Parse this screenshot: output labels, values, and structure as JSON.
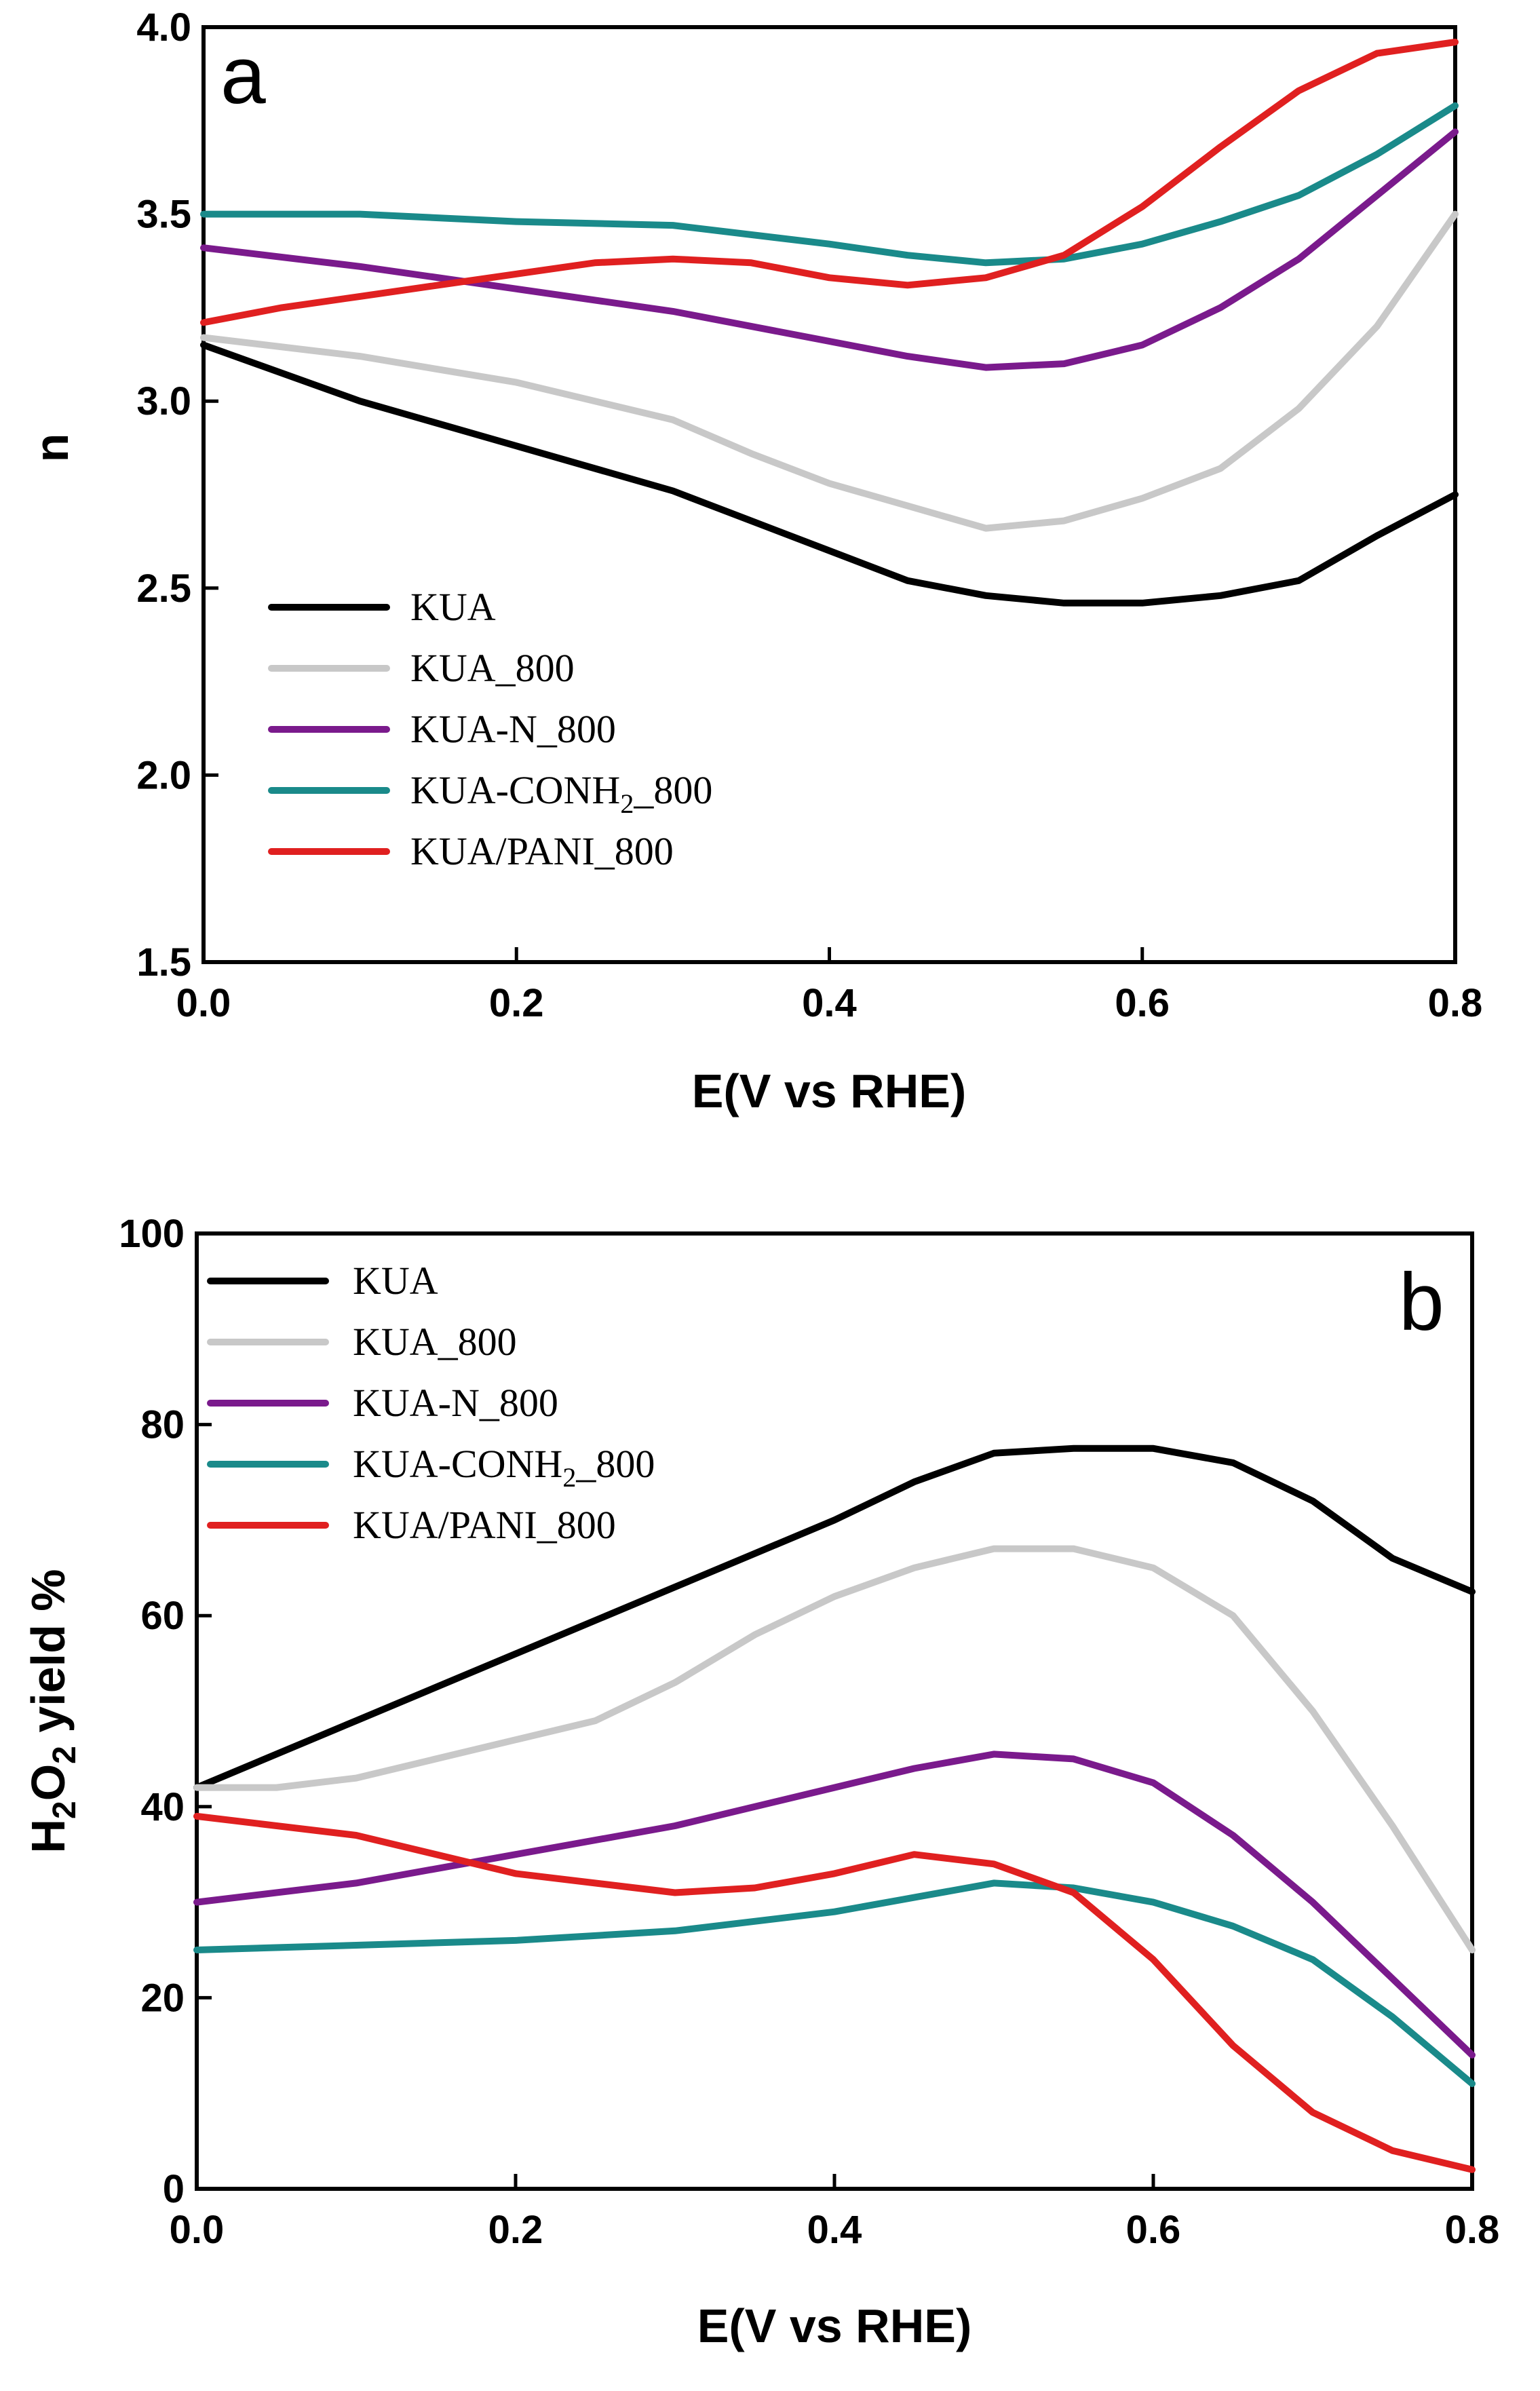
{
  "chart_data": [
    {
      "type": "line",
      "panel_label": "a",
      "title": "",
      "xlabel": "E(V vs RHE)",
      "ylabel": "n",
      "xlim": [
        0.0,
        0.8
      ],
      "ylim": [
        1.5,
        4.0
      ],
      "xticks": [
        "0.0",
        "0.2",
        "0.4",
        "0.6",
        "0.8"
      ],
      "yticks": [
        "1.5",
        "2.0",
        "2.5",
        "3.0",
        "3.5",
        "4.0"
      ],
      "legend_position": "lower-left",
      "series": [
        {
          "name": "KUA",
          "color": "#000000",
          "x": [
            0.0,
            0.1,
            0.2,
            0.3,
            0.4,
            0.45,
            0.5,
            0.55,
            0.6,
            0.65,
            0.7,
            0.75,
            0.8
          ],
          "y": [
            3.15,
            3.0,
            2.88,
            2.76,
            2.6,
            2.52,
            2.48,
            2.46,
            2.46,
            2.48,
            2.52,
            2.64,
            2.75
          ]
        },
        {
          "name": "KUA_800",
          "color": "#c8c8c8",
          "x": [
            0.0,
            0.1,
            0.2,
            0.3,
            0.35,
            0.4,
            0.45,
            0.5,
            0.55,
            0.6,
            0.65,
            0.7,
            0.75,
            0.8
          ],
          "y": [
            3.17,
            3.12,
            3.05,
            2.95,
            2.86,
            2.78,
            2.72,
            2.66,
            2.68,
            2.74,
            2.82,
            2.98,
            3.2,
            3.5
          ]
        },
        {
          "name": "KUA-N_800",
          "color": "#7a1a8c",
          "x": [
            0.0,
            0.1,
            0.2,
            0.3,
            0.4,
            0.45,
            0.5,
            0.55,
            0.6,
            0.65,
            0.7,
            0.75,
            0.8
          ],
          "y": [
            3.41,
            3.36,
            3.3,
            3.24,
            3.16,
            3.12,
            3.09,
            3.1,
            3.15,
            3.25,
            3.38,
            3.55,
            3.72
          ]
        },
        {
          "name": "KUA-CONH2_800",
          "color": "#1a8a8a",
          "x": [
            0.0,
            0.1,
            0.2,
            0.3,
            0.4,
            0.45,
            0.5,
            0.55,
            0.6,
            0.65,
            0.7,
            0.75,
            0.8
          ],
          "y": [
            3.5,
            3.5,
            3.48,
            3.47,
            3.42,
            3.39,
            3.37,
            3.38,
            3.42,
            3.48,
            3.55,
            3.66,
            3.79
          ]
        },
        {
          "name": "KUA/PANI_800",
          "color": "#e02020",
          "x": [
            0.0,
            0.05,
            0.1,
            0.15,
            0.2,
            0.25,
            0.3,
            0.35,
            0.4,
            0.45,
            0.5,
            0.55,
            0.6,
            0.65,
            0.7,
            0.75,
            0.8
          ],
          "y": [
            3.21,
            3.25,
            3.28,
            3.31,
            3.34,
            3.37,
            3.38,
            3.37,
            3.33,
            3.31,
            3.33,
            3.39,
            3.52,
            3.68,
            3.83,
            3.93,
            3.96
          ]
        }
      ]
    },
    {
      "type": "line",
      "panel_label": "b",
      "title": "",
      "xlabel": "E(V vs RHE)",
      "ylabel_main": "H",
      "ylabel_sub1": "2",
      "ylabel_mid": "O",
      "ylabel_sub2": "2",
      "ylabel_tail": " yield %",
      "xlim": [
        0.0,
        0.8
      ],
      "ylim": [
        0,
        100
      ],
      "xticks": [
        "0.0",
        "0.2",
        "0.4",
        "0.6",
        "0.8"
      ],
      "yticks": [
        "0",
        "20",
        "40",
        "60",
        "80",
        "100"
      ],
      "legend_position": "top-left",
      "series": [
        {
          "name": "KUA",
          "color": "#000000",
          "x": [
            0.0,
            0.1,
            0.2,
            0.3,
            0.4,
            0.45,
            0.5,
            0.55,
            0.6,
            0.65,
            0.7,
            0.75,
            0.8
          ],
          "y": [
            42,
            49,
            56,
            63,
            70,
            74,
            77,
            77.5,
            77.5,
            76,
            72,
            66,
            62.5
          ]
        },
        {
          "name": "KUA_800",
          "color": "#c8c8c8",
          "x": [
            0.0,
            0.05,
            0.1,
            0.15,
            0.2,
            0.25,
            0.3,
            0.35,
            0.4,
            0.45,
            0.5,
            0.55,
            0.6,
            0.65,
            0.7,
            0.75,
            0.8
          ],
          "y": [
            42,
            42,
            43,
            45,
            47,
            49,
            53,
            58,
            62,
            65,
            67,
            67,
            65,
            60,
            50,
            38,
            25
          ]
        },
        {
          "name": "KUA-N_800",
          "color": "#7a1a8c",
          "x": [
            0.0,
            0.1,
            0.2,
            0.3,
            0.4,
            0.45,
            0.5,
            0.55,
            0.6,
            0.65,
            0.7,
            0.75,
            0.8
          ],
          "y": [
            30,
            32,
            35,
            38,
            42,
            44,
            45.5,
            45,
            42.5,
            37,
            30,
            22,
            14
          ]
        },
        {
          "name": "KUA-CONH2_800",
          "color": "#1a8a8a",
          "x": [
            0.0,
            0.1,
            0.2,
            0.3,
            0.4,
            0.45,
            0.5,
            0.55,
            0.6,
            0.65,
            0.7,
            0.75,
            0.8
          ],
          "y": [
            25,
            25.5,
            26,
            27,
            29,
            30.5,
            32,
            31.5,
            30,
            27.5,
            24,
            18,
            11
          ]
        },
        {
          "name": "KUA/PANI_800",
          "color": "#e02020",
          "x": [
            0.0,
            0.1,
            0.2,
            0.3,
            0.35,
            0.4,
            0.45,
            0.5,
            0.55,
            0.6,
            0.65,
            0.7,
            0.75,
            0.8
          ],
          "y": [
            39,
            37,
            33,
            31,
            31.5,
            33,
            35,
            34,
            31,
            24,
            15,
            8,
            4,
            2
          ]
        }
      ]
    }
  ],
  "legend_entries": {
    "kua": "KUA",
    "kua_800": "KUA_800",
    "kua_n_800": "KUA-N_800",
    "kua_conh2_pre": "KUA-CONH",
    "kua_conh2_sub": "2",
    "kua_conh2_post": "_800",
    "kua_pani_800": "KUA/PANI_800"
  }
}
